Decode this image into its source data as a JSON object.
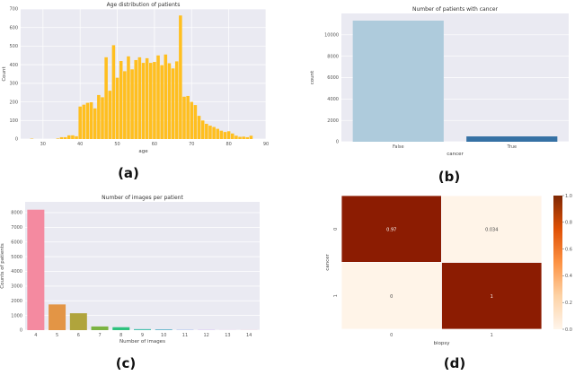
{
  "captions": [
    "(a)",
    "(b)",
    "(c)",
    "(d)"
  ],
  "colors": {
    "background": "#eaeaf2",
    "grid": "#ffffff",
    "age_bar": "#ffbf1f",
    "heat_dark": "#8c1c02",
    "heat_light": "#fff4e8"
  },
  "chart_data": [
    {
      "type": "bar",
      "title": "Age distribution of patients",
      "xlabel": "age",
      "ylabel": "Count",
      "xlim": [
        24,
        90
      ],
      "ylim": [
        0,
        700
      ],
      "xticks": [
        30,
        40,
        50,
        60,
        70,
        80,
        90
      ],
      "yticks": [
        0,
        100,
        200,
        300,
        400,
        500,
        600,
        700
      ],
      "x": [
        27,
        34,
        35,
        36,
        37,
        38,
        39,
        40,
        41,
        42,
        43,
        44,
        45,
        46,
        47,
        48,
        49,
        50,
        51,
        52,
        53,
        54,
        55,
        56,
        57,
        58,
        59,
        60,
        61,
        62,
        63,
        64,
        65,
        66,
        67,
        68,
        69,
        70,
        71,
        72,
        73,
        74,
        75,
        76,
        77,
        78,
        79,
        80,
        81,
        82,
        83,
        84,
        85,
        86
      ],
      "values": [
        2,
        3,
        10,
        10,
        20,
        20,
        15,
        175,
        185,
        195,
        198,
        165,
        237,
        225,
        440,
        260,
        505,
        330,
        420,
        365,
        445,
        375,
        425,
        440,
        410,
        435,
        410,
        415,
        450,
        398,
        455,
        408,
        380,
        418,
        665,
        228,
        232,
        200,
        183,
        125,
        100,
        82,
        72,
        65,
        55,
        45,
        38,
        42,
        30,
        18,
        12,
        13,
        10,
        18
      ],
      "grid": true
    },
    {
      "type": "bar",
      "title": "Number of patients with cancer",
      "xlabel": "cancer",
      "ylabel": "count",
      "categories": [
        "False",
        "True"
      ],
      "values": [
        11330,
        500
      ],
      "colors": [
        "#aecbdc",
        "#3571a4"
      ],
      "ylim": [
        0,
        12000
      ],
      "yticks": [
        0,
        2000,
        4000,
        6000,
        8000,
        10000
      ],
      "grid": true
    },
    {
      "type": "bar",
      "title": "Number of images per patient",
      "xlabel": "Number of images",
      "ylabel": "Counts of patients",
      "categories": [
        "4",
        "5",
        "6",
        "7",
        "8",
        "9",
        "10",
        "11",
        "12",
        "13",
        "14"
      ],
      "values": [
        8200,
        1750,
        1150,
        250,
        200,
        70,
        60,
        20,
        15,
        5,
        5
      ],
      "colors": [
        "#f48aa0",
        "#e39545",
        "#b0a43c",
        "#7cb342",
        "#2ec27e",
        "#4cc2b0",
        "#6fb8d0",
        "#8aa8ee",
        "#c49af0",
        "#e58fd8",
        "#f08aa8"
      ],
      "ylim": [
        0,
        9000
      ],
      "yticks": [
        0,
        1000,
        2000,
        3000,
        4000,
        5000,
        6000,
        7000,
        8000
      ],
      "grid": true
    },
    {
      "type": "heatmap",
      "xlabel": "biopsy",
      "ylabel": "cancer",
      "xticks": [
        "0",
        "1"
      ],
      "yticks": [
        "0",
        "1"
      ],
      "values": [
        [
          0.97,
          0.034
        ],
        [
          0,
          1
        ]
      ],
      "labels": [
        [
          "0.97",
          "0.034"
        ],
        [
          "0",
          "1"
        ]
      ],
      "colorbar": {
        "range": [
          0,
          1
        ],
        "ticks": [
          "0.0",
          "0.2",
          "0.4",
          "0.6",
          "0.8",
          "1.0"
        ]
      }
    }
  ]
}
